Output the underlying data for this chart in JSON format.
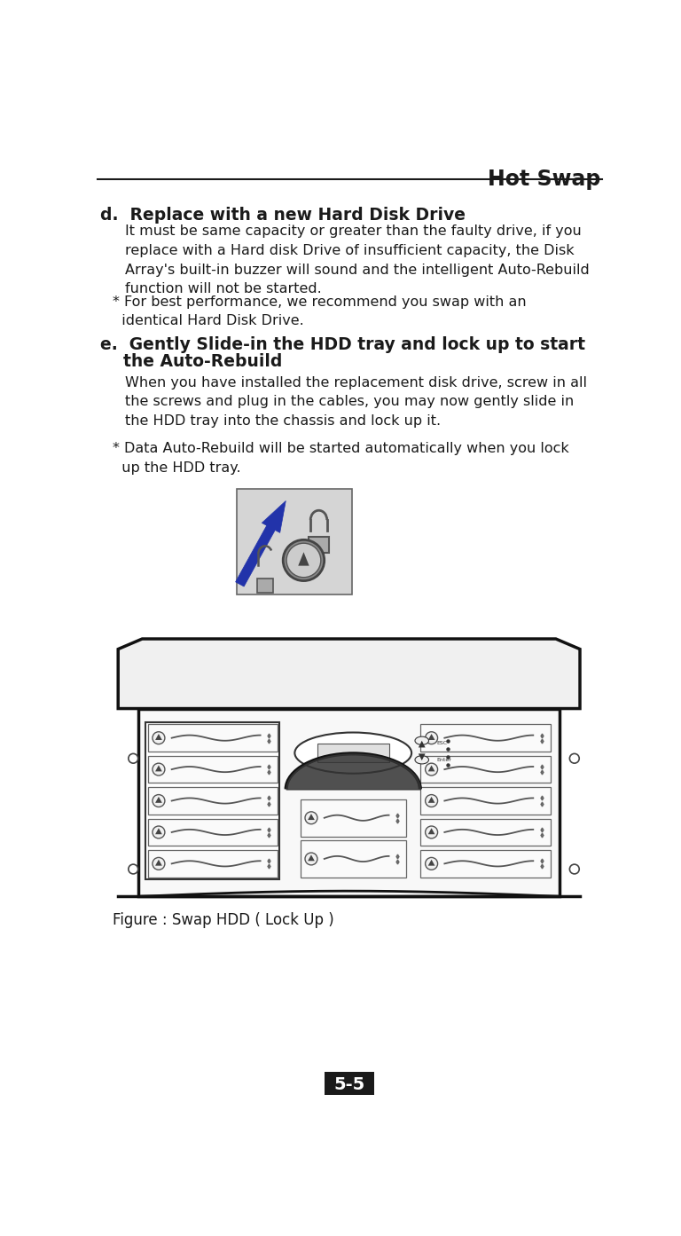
{
  "title": "Hot Swap",
  "page_num": "5-5",
  "bg_color": "#ffffff",
  "title_color": "#1a1a1a",
  "text_color": "#1a1a1a",
  "header_line_color": "#1a1a1a",
  "section_d_heading": "d.  Replace with a new Hard Disk Drive",
  "section_d_body1": "It must be same capacity or greater than the faulty drive, if you\nreplace with a Hard disk Drive of insufficient capacity, the Disk\nArray's built-in buzzer will sound and the intelligent Auto-Rebuild\nfunction will not be started.",
  "section_d_note": "* For best performance, we recommend you swap with an\n  identical Hard Disk Drive.",
  "section_e_heading_line1": "e.  Gently Slide-in the HDD tray and lock up to start",
  "section_e_heading_line2": "    the Auto-Rebuild",
  "section_e_body1": "When you have installed the replacement disk drive, screw in all\nthe screws and plug in the cables, you may now gently slide in\nthe HDD tray into the chassis and lock up it.",
  "section_e_note": "* Data Auto-Rebuild will be started automatically when you lock\n  up the HDD tray.",
  "figure_caption": "Figure : Swap HDD ( Lock Up )",
  "esc_label": "ESC",
  "enter_label": "Enter",
  "blue_arrow_color": "#2233aa",
  "lock_gray": "#888888",
  "chassis_line": "#111111",
  "slot_line": "#555555"
}
